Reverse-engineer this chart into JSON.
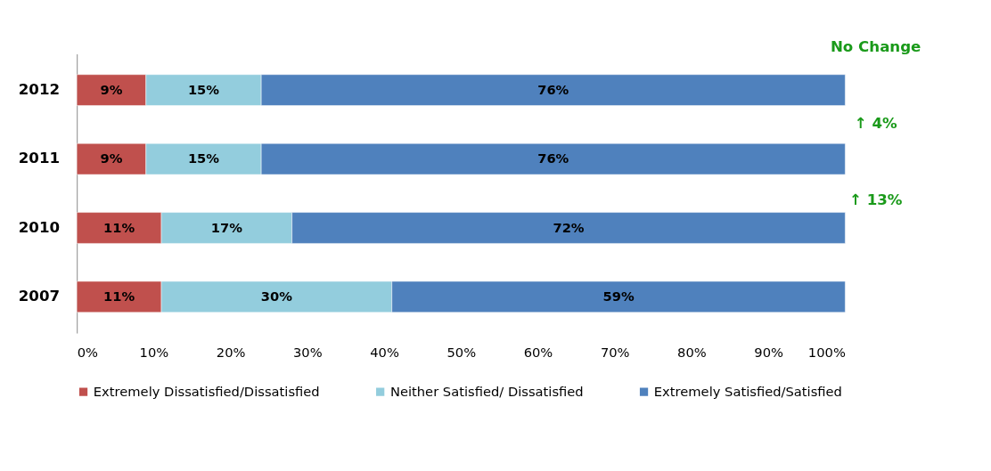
{
  "chart_data": {
    "type": "bar",
    "orientation": "horizontal",
    "stacked": true,
    "categories": [
      "2012",
      "2011",
      "2010",
      "2007"
    ],
    "series": [
      {
        "name": "Extremely Dissatisfied/Dissatisfied",
        "color": "#c0504d",
        "values": [
          9,
          9,
          11,
          11
        ],
        "value_labels": [
          "9%",
          "9%",
          "11%",
          "11%"
        ]
      },
      {
        "name": "Neither Satisfied/ Dissatisfied",
        "color": "#93cddd",
        "values": [
          15,
          15,
          17,
          30
        ],
        "value_labels": [
          "15%",
          "15%",
          "17%",
          "30%"
        ]
      },
      {
        "name": "Extremely Satisfied/Satisfied",
        "color": "#4f81bd",
        "values": [
          76,
          76,
          72,
          59
        ],
        "value_labels": [
          "76%",
          "76%",
          "72%",
          "59%"
        ]
      }
    ],
    "xlim": [
      0,
      100
    ],
    "xticks": [
      {
        "value": 0,
        "label": "0%"
      },
      {
        "value": 10,
        "label": "10%"
      },
      {
        "value": 20,
        "label": "20%"
      },
      {
        "value": 30,
        "label": "30%"
      },
      {
        "value": 40,
        "label": "40%"
      },
      {
        "value": 50,
        "label": "50%"
      },
      {
        "value": 60,
        "label": "60%"
      },
      {
        "value": 70,
        "label": "70%"
      },
      {
        "value": 80,
        "label": "80%"
      },
      {
        "value": 90,
        "label": "90%"
      },
      {
        "value": 100,
        "label": "100%"
      }
    ],
    "annotations": [
      "No Change",
      "↑ 4%",
      "↑ 13%"
    ],
    "legend": "bottom",
    "grid": false
  }
}
